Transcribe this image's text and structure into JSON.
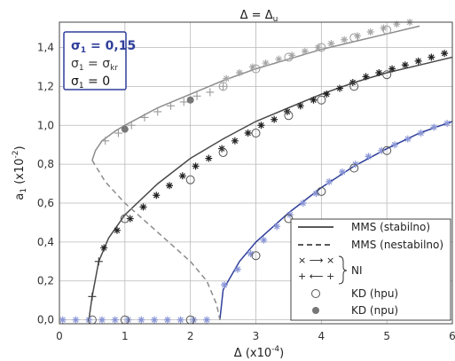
{
  "chart_data": {
    "type": "line",
    "title": "Δ = Δ",
    "title_sub": "u",
    "xlabel": "Δ (x10",
    "xlabel_sup": "-4",
    "xlabel_tail": ")",
    "ylabel": "a",
    "ylabel_sub": "1",
    "ylabel_tail": " (x10",
    "ylabel_sup": "-2",
    "ylabel_end": ")",
    "xlim": [
      0,
      6
    ],
    "ylim": [
      -0.02,
      1.53
    ],
    "x_ticks": [
      "0",
      "1",
      "2",
      "3",
      "4",
      "5",
      "6"
    ],
    "y_ticks": [
      "0,0",
      "0,2",
      "0,4",
      "0,6",
      "0,8",
      "1,0",
      "1,2",
      "1,4"
    ],
    "grid": true,
    "sigma_box": {
      "lines": [
        {
          "text": "σ",
          "sub": "1",
          "eq": " = 0,15",
          "color": "#2f3f9a",
          "bold": true
        },
        {
          "text": "σ",
          "sub": "1",
          "eq": " = σ",
          "eq_sub": "kr",
          "color": "#333333",
          "bold": false
        },
        {
          "text": "σ",
          "sub": "1",
          "eq": " = 0",
          "color": "#111111",
          "bold": false
        }
      ]
    },
    "legend": {
      "placement": "bottom-right",
      "entries": [
        {
          "label": "MMS (stabilno)",
          "style": "solid"
        },
        {
          "label": "MMS (nestabilno)",
          "style": "dashed"
        },
        {
          "label": "NI",
          "style": "ni-group"
        },
        {
          "label": "KD (hpu)",
          "style": "open-circle"
        },
        {
          "label": "KD (npu)",
          "style": "filled-circle"
        }
      ],
      "ni_arrow_top": "× ⟶ ×",
      "ni_arrow_bottom": "+ ⟵ +"
    },
    "series": [
      {
        "case": "σ1 = 0,15",
        "color": "#2f3f9a",
        "stable": [
          [
            2.45,
            0.0
          ],
          [
            2.5,
            0.155
          ],
          [
            2.75,
            0.3
          ],
          [
            3.0,
            0.4
          ],
          [
            3.5,
            0.55
          ],
          [
            4.0,
            0.68
          ],
          [
            4.5,
            0.79
          ],
          [
            5.0,
            0.88
          ],
          [
            5.5,
            0.96
          ],
          [
            6.0,
            1.02
          ]
        ],
        "ni_star": [
          [
            0.05,
            0.0
          ],
          [
            0.25,
            0.0
          ],
          [
            0.45,
            0.0
          ],
          [
            0.65,
            0.0
          ],
          [
            0.85,
            0.0
          ],
          [
            1.05,
            0.0
          ],
          [
            1.25,
            0.0
          ],
          [
            1.45,
            0.0
          ],
          [
            1.65,
            0.0
          ],
          [
            1.85,
            0.0
          ],
          [
            2.05,
            0.0
          ],
          [
            2.25,
            0.0
          ],
          [
            2.52,
            0.18
          ],
          [
            2.72,
            0.26
          ],
          [
            2.92,
            0.34
          ],
          [
            3.12,
            0.41
          ],
          [
            3.32,
            0.48
          ],
          [
            3.52,
            0.54
          ],
          [
            3.72,
            0.6
          ],
          [
            3.92,
            0.65
          ],
          [
            4.12,
            0.71
          ],
          [
            4.32,
            0.76
          ],
          [
            4.52,
            0.8
          ],
          [
            4.72,
            0.84
          ],
          [
            4.92,
            0.87
          ],
          [
            5.12,
            0.9
          ],
          [
            5.32,
            0.93
          ],
          [
            5.52,
            0.96
          ],
          [
            5.72,
            0.99
          ],
          [
            5.92,
            1.01
          ]
        ],
        "kd_hpu": [
          [
            0.5,
            0.0
          ],
          [
            1.0,
            0.0
          ],
          [
            2.0,
            0.0
          ],
          [
            3.0,
            0.33
          ],
          [
            3.5,
            0.52
          ],
          [
            4.0,
            0.66
          ],
          [
            4.5,
            0.78
          ],
          [
            5.0,
            0.87
          ]
        ]
      },
      {
        "case": "σ1 = σkr",
        "color": "#4a4a4a",
        "stable": [
          [
            0.45,
            0.0
          ],
          [
            0.5,
            0.12
          ],
          [
            0.6,
            0.3
          ],
          [
            0.75,
            0.42
          ],
          [
            1.0,
            0.54
          ],
          [
            1.5,
            0.7
          ],
          [
            2.0,
            0.83
          ],
          [
            2.5,
            0.93
          ],
          [
            3.0,
            1.02
          ],
          [
            3.5,
            1.09
          ],
          [
            4.0,
            1.16
          ],
          [
            4.5,
            1.22
          ],
          [
            5.0,
            1.27
          ],
          [
            5.5,
            1.31
          ],
          [
            6.0,
            1.35
          ]
        ],
        "ni_star": [
          [
            0.68,
            0.37
          ],
          [
            0.88,
            0.46
          ],
          [
            1.08,
            0.52
          ],
          [
            1.28,
            0.58
          ],
          [
            1.48,
            0.64
          ],
          [
            1.68,
            0.69
          ],
          [
            1.88,
            0.74
          ],
          [
            2.08,
            0.79
          ],
          [
            2.28,
            0.83
          ],
          [
            2.48,
            0.88
          ],
          [
            2.68,
            0.92
          ],
          [
            2.88,
            0.96
          ],
          [
            3.08,
            1.0
          ],
          [
            3.28,
            1.03
          ],
          [
            3.48,
            1.07
          ],
          [
            3.68,
            1.1
          ],
          [
            3.88,
            1.13
          ],
          [
            4.08,
            1.16
          ],
          [
            4.28,
            1.19
          ],
          [
            4.48,
            1.22
          ],
          [
            4.68,
            1.25
          ],
          [
            4.88,
            1.27
          ],
          [
            5.08,
            1.29
          ],
          [
            5.28,
            1.31
          ],
          [
            5.48,
            1.33
          ],
          [
            5.68,
            1.35
          ],
          [
            5.88,
            1.37
          ]
        ],
        "ni_plus": [
          [
            0.5,
            0.12
          ],
          [
            0.6,
            0.3
          ]
        ],
        "kd_hpu": [
          [
            1.0,
            0.52
          ],
          [
            2.0,
            0.72
          ],
          [
            2.5,
            0.86
          ],
          [
            3.0,
            0.96
          ],
          [
            3.5,
            1.05
          ],
          [
            4.0,
            1.13
          ],
          [
            4.5,
            1.2
          ],
          [
            5.0,
            1.26
          ]
        ]
      },
      {
        "case": "σ1 = 0",
        "color": "#8c8c8c",
        "stable": [
          [
            0.5,
            0.82
          ],
          [
            0.55,
            0.87
          ],
          [
            0.65,
            0.92
          ],
          [
            0.85,
            0.97
          ],
          [
            1.0,
            1.0
          ],
          [
            1.5,
            1.09
          ],
          [
            2.0,
            1.16
          ],
          [
            2.5,
            1.23
          ],
          [
            3.0,
            1.29
          ],
          [
            3.5,
            1.34
          ],
          [
            4.0,
            1.39
          ],
          [
            4.5,
            1.43
          ],
          [
            5.0,
            1.47
          ],
          [
            5.5,
            1.51
          ]
        ],
        "unstable": [
          [
            0.5,
            0.82
          ],
          [
            0.7,
            0.71
          ],
          [
            1.0,
            0.6
          ],
          [
            1.5,
            0.45
          ],
          [
            2.0,
            0.3
          ],
          [
            2.25,
            0.2
          ],
          [
            2.4,
            0.08
          ],
          [
            2.45,
            0.0
          ]
        ],
        "ni_star": [
          [
            2.55,
            1.24
          ],
          [
            2.75,
            1.27
          ],
          [
            2.95,
            1.3
          ],
          [
            3.15,
            1.32
          ],
          [
            3.35,
            1.34
          ],
          [
            3.55,
            1.36
          ],
          [
            3.75,
            1.38
          ],
          [
            3.95,
            1.4
          ],
          [
            4.15,
            1.42
          ],
          [
            4.35,
            1.44
          ],
          [
            4.55,
            1.46
          ],
          [
            4.75,
            1.48
          ],
          [
            4.95,
            1.5
          ],
          [
            5.15,
            1.52
          ],
          [
            5.35,
            1.53
          ]
        ],
        "ni_plus": [
          [
            0.7,
            0.92
          ],
          [
            0.9,
            0.96
          ],
          [
            1.1,
            1.0
          ],
          [
            1.3,
            1.04
          ],
          [
            1.5,
            1.07
          ],
          [
            1.7,
            1.1
          ],
          [
            1.9,
            1.12
          ],
          [
            2.1,
            1.15
          ],
          [
            2.3,
            1.17
          ],
          [
            2.5,
            1.2
          ]
        ],
        "kd_hpu": [
          [
            2.5,
            1.2
          ],
          [
            3.0,
            1.29
          ],
          [
            3.5,
            1.35
          ],
          [
            4.0,
            1.4
          ],
          [
            4.5,
            1.45
          ],
          [
            5.0,
            1.49
          ]
        ],
        "kd_npu": [
          [
            1.0,
            0.98
          ],
          [
            2.0,
            1.13
          ]
        ]
      }
    ]
  }
}
